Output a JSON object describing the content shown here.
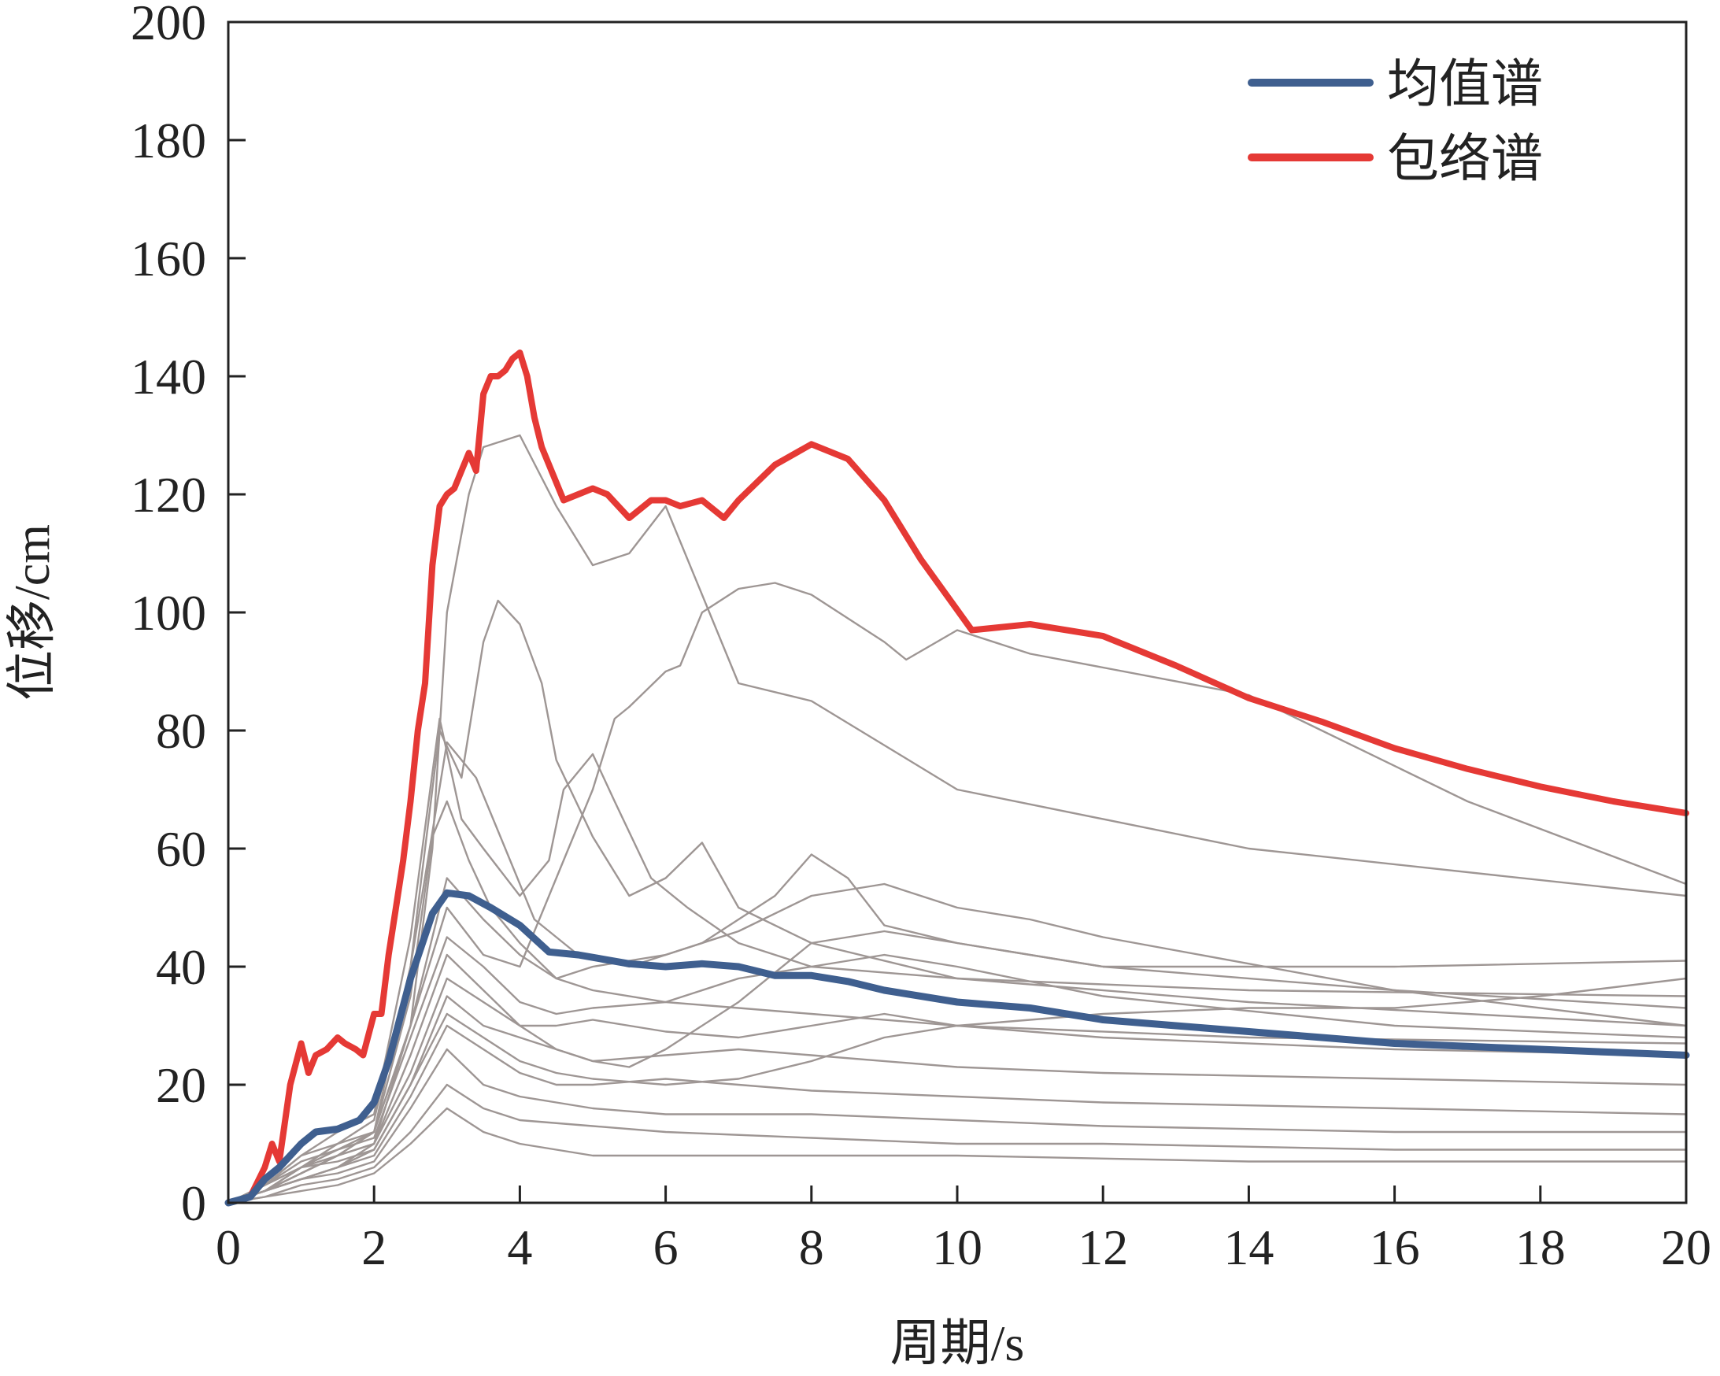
{
  "chart_data": {
    "type": "line",
    "xlabel": "周期/s",
    "ylabel": "位移/cm",
    "xlim": [
      0,
      20
    ],
    "ylim": [
      0,
      200
    ],
    "xticks": [
      0,
      2,
      4,
      6,
      8,
      10,
      12,
      14,
      16,
      18,
      20
    ],
    "yticks": [
      0,
      20,
      40,
      60,
      80,
      100,
      120,
      140,
      160,
      180,
      200
    ],
    "grid": false,
    "legend_position": "top-right",
    "colors": {
      "mean": "#3f5f8f",
      "envelope": "#e53935",
      "records": "#9e9694"
    },
    "series": [
      {
        "name": "均值谱",
        "role": "mean",
        "x": [
          0,
          0.3,
          0.5,
          0.7,
          1.0,
          1.2,
          1.5,
          1.8,
          2.0,
          2.2,
          2.5,
          2.8,
          3.0,
          3.3,
          3.6,
          4.0,
          4.4,
          4.8,
          5.5,
          6.0,
          6.5,
          7.0,
          7.5,
          8.0,
          8.5,
          9.0,
          10.0,
          11.0,
          12.0,
          13.0,
          14.0,
          15.0,
          16.0,
          17.0,
          18.0,
          19.0,
          20.0
        ],
        "y": [
          0,
          1,
          4,
          6,
          10,
          12,
          12.5,
          14,
          17,
          24,
          38,
          49,
          52.5,
          52,
          50,
          47,
          42.5,
          42,
          40.5,
          40,
          40.5,
          40,
          38.5,
          38.5,
          37.5,
          36,
          34,
          33,
          31,
          30,
          29,
          28,
          27,
          26.5,
          26,
          25.5,
          25
        ]
      },
      {
        "name": "包络谱",
        "role": "envelope",
        "x": [
          0,
          0.3,
          0.5,
          0.6,
          0.7,
          0.85,
          1.0,
          1.1,
          1.2,
          1.35,
          1.5,
          1.6,
          1.75,
          1.85,
          2.0,
          2.1,
          2.2,
          2.3,
          2.4,
          2.5,
          2.6,
          2.7,
          2.8,
          2.9,
          3.0,
          3.1,
          3.2,
          3.3,
          3.4,
          3.5,
          3.6,
          3.7,
          3.8,
          3.9,
          4.0,
          4.1,
          4.2,
          4.3,
          4.6,
          4.8,
          5.0,
          5.2,
          5.5,
          5.8,
          6.0,
          6.2,
          6.5,
          6.8,
          7.0,
          7.5,
          8.0,
          8.5,
          9.0,
          9.5,
          10.2,
          11.0,
          12.0,
          13.0,
          14.0,
          15.0,
          16.0,
          17.0,
          18.0,
          19.0,
          20.0
        ],
        "y": [
          0,
          1,
          6,
          10,
          7,
          20,
          27,
          22,
          25,
          26,
          28,
          27,
          26,
          25,
          32,
          32,
          42,
          50,
          58,
          68,
          80,
          88,
          108,
          118,
          120,
          121,
          124,
          127,
          124,
          137,
          140,
          140,
          141,
          143,
          144,
          140,
          133,
          128,
          119,
          120,
          121,
          120,
          116,
          119,
          119,
          118,
          119,
          116,
          119,
          125,
          128.5,
          126,
          119,
          109,
          97,
          98,
          96,
          91,
          85.5,
          81.5,
          77,
          73.5,
          70.5,
          68,
          66
        ]
      }
    ]
  },
  "background_records": [
    {
      "x": [
        0,
        0.5,
        1.0,
        1.5,
        2.0,
        2.5,
        2.8,
        3.0,
        3.3,
        3.5,
        4.0,
        4.5,
        5.0,
        5.5,
        6.0,
        7.0,
        8.0,
        10.0,
        14.0,
        20.0
      ],
      "y": [
        0,
        3,
        6,
        8,
        12,
        30,
        60,
        100,
        120,
        128,
        130,
        118,
        108,
        110,
        118,
        88,
        85,
        70,
        60,
        52
      ]
    },
    {
      "x": [
        0,
        0.5,
        1.0,
        1.5,
        2.0,
        2.5,
        3.0,
        3.5,
        4.0,
        4.5,
        5.0,
        5.3,
        5.5,
        6.0,
        6.2,
        6.5,
        7.0,
        7.5,
        8.0,
        9.0,
        9.3,
        10.0,
        11.0,
        14.0,
        17.0,
        20.0
      ],
      "y": [
        0,
        2,
        4,
        6,
        10,
        30,
        50,
        42,
        40,
        55,
        70,
        82,
        84,
        90,
        91,
        100,
        104,
        105,
        103,
        95,
        92,
        97,
        93,
        86,
        68,
        54
      ]
    },
    {
      "x": [
        0,
        0.5,
        1.0,
        1.5,
        2.0,
        2.5,
        2.9,
        3.2,
        3.5,
        3.7,
        4.0,
        4.3,
        4.5,
        5.0,
        5.5,
        6.0,
        6.5,
        7.0,
        8.0,
        10.0,
        14.0,
        20.0
      ],
      "y": [
        0,
        2,
        5,
        8,
        12,
        40,
        80,
        72,
        95,
        102,
        98,
        88,
        75,
        62,
        52,
        55,
        61,
        50,
        44,
        38,
        34,
        30
      ]
    },
    {
      "x": [
        0,
        0.5,
        1.0,
        1.5,
        2.0,
        2.5,
        2.9,
        3.2,
        3.5,
        4.0,
        4.4,
        4.6,
        5.0,
        5.3,
        5.8,
        6.3,
        7.0,
        8.0,
        10.0,
        14.0,
        20.0
      ],
      "y": [
        0,
        3,
        8,
        12,
        15,
        45,
        82,
        65,
        60,
        52,
        58,
        70,
        76,
        68,
        55,
        50,
        44,
        40,
        38,
        36,
        35
      ]
    },
    {
      "x": [
        0,
        0.5,
        1.0,
        1.5,
        2.0,
        2.5,
        3.0,
        3.4,
        3.8,
        4.2,
        4.8,
        5.5,
        6.5,
        7.5,
        8.0,
        8.5,
        9.0,
        10.0,
        12.0,
        16.0,
        20.0
      ],
      "y": [
        0,
        3,
        8,
        10,
        14,
        40,
        78,
        72,
        60,
        48,
        42,
        40,
        44,
        52,
        59,
        55,
        47,
        44,
        40,
        40,
        41
      ]
    },
    {
      "x": [
        0,
        0.5,
        1.0,
        1.5,
        2.0,
        2.5,
        3.0,
        3.5,
        4.0,
        4.5,
        5.0,
        6.0,
        7.0,
        8.0,
        9.0,
        10.0,
        11.0,
        12.0,
        16.0,
        20.0
      ],
      "y": [
        0,
        2,
        6,
        10,
        12,
        30,
        55,
        48,
        42,
        38,
        40,
        42,
        46,
        52,
        54,
        50,
        48,
        45,
        36,
        30
      ]
    },
    {
      "x": [
        0,
        0.5,
        1.0,
        1.5,
        2.0,
        2.5,
        3.0,
        3.5,
        4.0,
        4.5,
        5.0,
        6.0,
        7.0,
        8.0,
        9.0,
        10.0,
        12.0,
        16.0,
        20.0
      ],
      "y": [
        0,
        3,
        7,
        9,
        11,
        28,
        45,
        40,
        34,
        32,
        33,
        34,
        38,
        40,
        42,
        40,
        35,
        30,
        28
      ]
    },
    {
      "x": [
        0,
        0.5,
        1.0,
        1.5,
        2.0,
        2.5,
        3.0,
        3.5,
        4.0,
        4.5,
        5.0,
        6.0,
        7.0,
        8.0,
        9.0,
        10.0,
        12.0,
        16.0,
        20.0
      ],
      "y": [
        0,
        2,
        5,
        8,
        10,
        22,
        38,
        34,
        30,
        30,
        31,
        29,
        28,
        30,
        32,
        30,
        28,
        26,
        25
      ]
    },
    {
      "x": [
        0,
        0.5,
        1.0,
        1.5,
        2.0,
        2.5,
        3.0,
        3.5,
        4.0,
        4.5,
        5.0,
        6.0,
        7.0,
        8.0,
        10.0,
        12.0,
        16.0,
        20.0
      ],
      "y": [
        0,
        3,
        6,
        7,
        9,
        20,
        35,
        30,
        28,
        26,
        24,
        25,
        26,
        25,
        23,
        22,
        21,
        20
      ]
    },
    {
      "x": [
        0,
        0.5,
        1.0,
        1.5,
        2.0,
        2.5,
        3.0,
        3.5,
        4.0,
        4.5,
        5.0,
        6.0,
        7.0,
        8.0,
        10.0,
        12.0,
        16.0,
        20.0
      ],
      "y": [
        0,
        2,
        4,
        6,
        8,
        18,
        30,
        26,
        22,
        20,
        20,
        21,
        20,
        19,
        18,
        17,
        16,
        15
      ]
    },
    {
      "x": [
        0,
        0.5,
        1.0,
        1.5,
        2.0,
        2.5,
        3.0,
        3.5,
        4.0,
        4.5,
        5.0,
        6.0,
        8.0,
        10.0,
        12.0,
        16.0,
        20.0
      ],
      "y": [
        0,
        2,
        4,
        5,
        7,
        16,
        26,
        20,
        18,
        17,
        16,
        15,
        15,
        14,
        13,
        12,
        12
      ]
    },
    {
      "x": [
        0,
        0.5,
        1.0,
        1.5,
        2.0,
        2.5,
        3.0,
        3.5,
        4.0,
        5.0,
        6.0,
        8.0,
        10.0,
        12.0,
        16.0,
        20.0
      ],
      "y": [
        0,
        1,
        3,
        4,
        6,
        12,
        20,
        16,
        14,
        13,
        12,
        11,
        10,
        10,
        9,
        9
      ]
    },
    {
      "x": [
        0,
        0.5,
        1.0,
        1.5,
        2.0,
        2.5,
        3.0,
        3.5,
        4.0,
        5.0,
        6.0,
        8.0,
        10.0,
        14.0,
        20.0
      ],
      "y": [
        0,
        1,
        2,
        3,
        5,
        10,
        16,
        12,
        10,
        8,
        8,
        8,
        8,
        7,
        7
      ]
    },
    {
      "x": [
        0,
        0.5,
        1.0,
        1.5,
        2.0,
        2.5,
        2.8,
        3.0,
        3.3,
        3.6,
        4.0,
        4.5,
        5.0,
        6.0,
        8.0,
        10.0,
        14.0,
        20.0
      ],
      "y": [
        0,
        2,
        6,
        9,
        12,
        35,
        62,
        68,
        58,
        50,
        44,
        38,
        36,
        34,
        32,
        30,
        28,
        27
      ]
    },
    {
      "x": [
        0,
        0.5,
        1.0,
        1.5,
        2.0,
        2.5,
        3.0,
        3.5,
        4.0,
        4.5,
        5.0,
        5.5,
        6.0,
        7.0,
        8.0,
        9.0,
        10.0,
        12.0,
        16.0,
        20.0
      ],
      "y": [
        0,
        2,
        5,
        8,
        10,
        25,
        42,
        36,
        30,
        26,
        24,
        23,
        26,
        34,
        44,
        46,
        44,
        40,
        36,
        33
      ]
    },
    {
      "x": [
        0,
        0.5,
        1.0,
        1.5,
        2.0,
        2.5,
        3.0,
        3.5,
        4.0,
        4.5,
        5.0,
        6.0,
        7.0,
        8.0,
        9.0,
        10.0,
        12.0,
        14.0,
        16.0,
        18.0,
        20.0
      ],
      "y": [
        0,
        2,
        4,
        6,
        9,
        20,
        32,
        28,
        24,
        22,
        21,
        20,
        21,
        24,
        28,
        30,
        32,
        33,
        33,
        35,
        38
      ]
    }
  ],
  "legend": [
    {
      "label": "均值谱",
      "color": "#3f5f8f"
    },
    {
      "label": "包络谱",
      "color": "#e53935"
    }
  ]
}
